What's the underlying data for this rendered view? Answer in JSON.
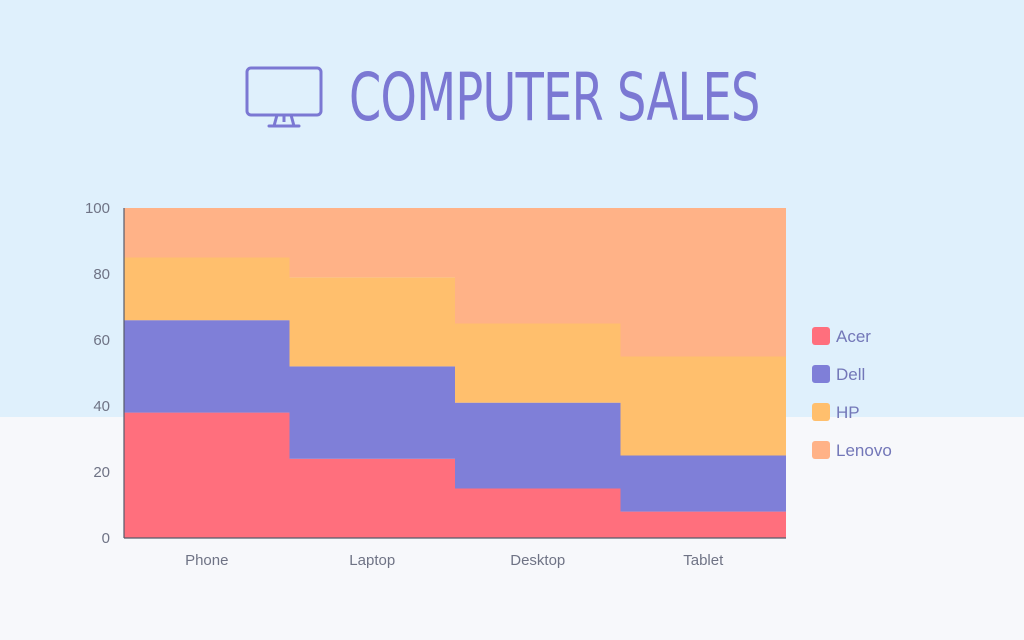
{
  "header": {
    "title": "COMPUTER SALES",
    "icon": "monitor-icon"
  },
  "colors": {
    "Acer": "#ff6f7d",
    "Dell": "#7f7fd8",
    "HP": "#ffbf6d",
    "Lenovo": "#ffb287",
    "accent": "#7b78d3"
  },
  "chart_data": {
    "type": "bar",
    "stacked": true,
    "title": "COMPUTER SALES",
    "xlabel": "",
    "ylabel": "",
    "categories": [
      "Phone",
      "Laptop",
      "Desktop",
      "Tablet"
    ],
    "ylim": [
      0,
      100
    ],
    "yticks": [
      0,
      20,
      40,
      60,
      80,
      100
    ],
    "grid": false,
    "legend": "right",
    "series": [
      {
        "name": "Acer",
        "values": [
          38,
          24,
          15,
          8
        ]
      },
      {
        "name": "Dell",
        "values": [
          28,
          28,
          26,
          17
        ]
      },
      {
        "name": "HP",
        "values": [
          19,
          27,
          24,
          30
        ]
      },
      {
        "name": "Lenovo",
        "values": [
          15,
          21,
          35,
          45
        ]
      }
    ]
  }
}
